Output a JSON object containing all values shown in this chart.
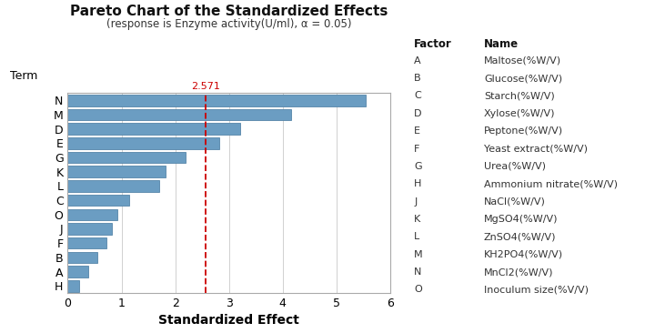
{
  "title": "Pareto Chart of the Standardized Effects",
  "subtitle_full": "(response is Enzyme activity(U/ml), α = 0.05)",
  "xlabel": "Standardized Effect",
  "ylabel": "Term",
  "terms": [
    "N",
    "M",
    "D",
    "E",
    "G",
    "K",
    "L",
    "C",
    "O",
    "J",
    "F",
    "B",
    "A",
    "H"
  ],
  "values": [
    5.55,
    4.15,
    3.2,
    2.82,
    2.2,
    1.82,
    1.7,
    1.15,
    0.92,
    0.82,
    0.72,
    0.55,
    0.38,
    0.22
  ],
  "reference_line": 2.571,
  "xlim": [
    0,
    6
  ],
  "xticks": [
    0,
    1,
    2,
    3,
    4,
    5,
    6
  ],
  "bar_color": "#6B9DC2",
  "bar_edge_color": "#5585A8",
  "ref_line_color": "#CC0000",
  "background_color": "#FFFFFF",
  "grid_color": "#D0D0D0",
  "factor_table": {
    "headers": [
      "Factor",
      "Name"
    ],
    "rows": [
      [
        "A",
        "Maltose(%W/V)"
      ],
      [
        "B",
        "Glucose(%W/V)"
      ],
      [
        "C",
        "Starch(%W/V)"
      ],
      [
        "D",
        "Xylose(%W/V)"
      ],
      [
        "E",
        "Peptone(%W/V)"
      ],
      [
        "F",
        "Yeast extract(%W/V)"
      ],
      [
        "G",
        "Urea(%W/V)"
      ],
      [
        "H",
        "Ammonium nitrate(%W/V)"
      ],
      [
        "J",
        "NaCl(%W/V)"
      ],
      [
        "K",
        "MgSO4(%W/V)"
      ],
      [
        "L",
        "ZnSO4(%W/V)"
      ],
      [
        "M",
        "KH2PO4(%W/V)"
      ],
      [
        "N",
        "MnCl2(%W/V)"
      ],
      [
        "O",
        "Inoculum size(%V/V)"
      ]
    ]
  }
}
